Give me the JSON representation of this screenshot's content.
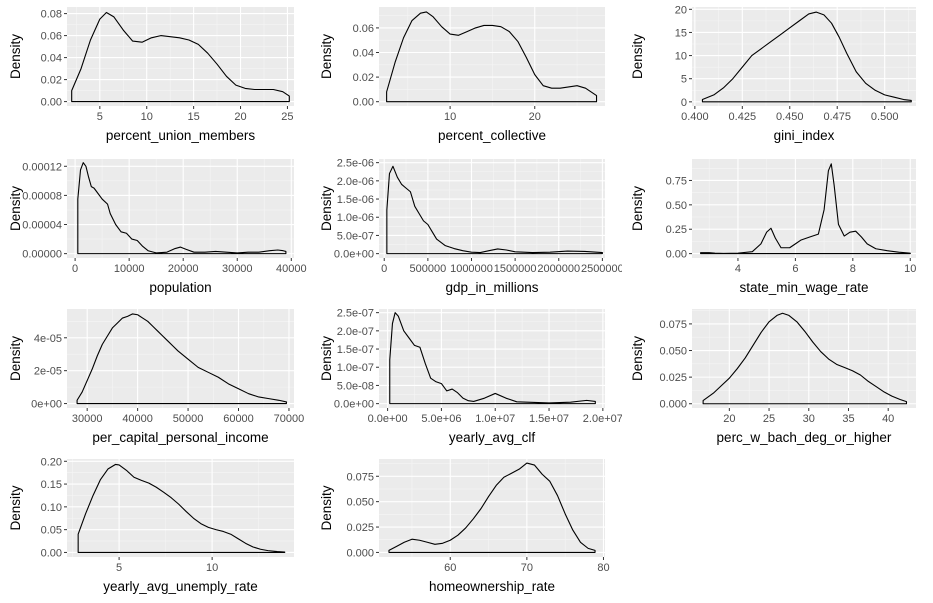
{
  "chart_data": [
    {
      "type": "area",
      "xlabel": "percent_union_members",
      "ylabel": "Density",
      "xlim": [
        1.5,
        25.7
      ],
      "ylim": [
        -0.004,
        0.086
      ],
      "xticks": [
        {
          "v": 5,
          "l": "5"
        },
        {
          "v": 10,
          "l": "10"
        },
        {
          "v": 15,
          "l": "15"
        },
        {
          "v": 20,
          "l": "20"
        },
        {
          "v": 25,
          "l": "25"
        }
      ],
      "yticks": [
        {
          "v": 0,
          "l": "0.00"
        },
        {
          "v": 0.02,
          "l": "0.02"
        },
        {
          "v": 0.04,
          "l": "0.04"
        },
        {
          "v": 0.06,
          "l": "0.06"
        },
        {
          "v": 0.08,
          "l": "0.08"
        }
      ],
      "x": [
        2.0,
        3.0,
        4.0,
        5.0,
        5.7,
        6.5,
        7.5,
        8.5,
        9.5,
        10.5,
        11.5,
        12.5,
        13.5,
        14.5,
        15.5,
        16.5,
        17.5,
        18.5,
        19.5,
        20.5,
        21.5,
        22.5,
        23.5,
        24.5,
        25.2
      ],
      "y": [
        0.01,
        0.03,
        0.056,
        0.075,
        0.081,
        0.077,
        0.065,
        0.055,
        0.054,
        0.058,
        0.06,
        0.059,
        0.058,
        0.056,
        0.052,
        0.044,
        0.034,
        0.023,
        0.015,
        0.012,
        0.011,
        0.011,
        0.011,
        0.009,
        0.005
      ]
    },
    {
      "type": "area",
      "xlabel": "percent_collective",
      "ylabel": "Density",
      "xlim": [
        1.6,
        28.3
      ],
      "ylim": [
        -0.0035,
        0.077
      ],
      "xticks": [
        {
          "v": 10,
          "l": "10"
        },
        {
          "v": 20,
          "l": "20"
        }
      ],
      "yticks": [
        {
          "v": 0,
          "l": "0.00"
        },
        {
          "v": 0.02,
          "l": "0.02"
        },
        {
          "v": 0.04,
          "l": "0.04"
        },
        {
          "v": 0.06,
          "l": "0.06"
        }
      ],
      "x": [
        2.5,
        3.5,
        4.5,
        5.5,
        6.5,
        7.2,
        8.0,
        9.0,
        10.0,
        11.0,
        12.0,
        13.0,
        14.0,
        15.0,
        16.0,
        17.0,
        18.0,
        19.0,
        20.0,
        21.0,
        22.0,
        23.0,
        24.0,
        25.0,
        26.0,
        27.3
      ],
      "y": [
        0.008,
        0.032,
        0.052,
        0.066,
        0.072,
        0.073,
        0.069,
        0.061,
        0.055,
        0.054,
        0.057,
        0.06,
        0.062,
        0.062,
        0.061,
        0.057,
        0.049,
        0.036,
        0.022,
        0.013,
        0.011,
        0.011,
        0.012,
        0.013,
        0.011,
        0.005
      ]
    },
    {
      "type": "area",
      "xlabel": "gini_index",
      "ylabel": "Density",
      "xlim": [
        0.3985,
        0.5165
      ],
      "ylim": [
        -0.9,
        20.5
      ],
      "xticks": [
        {
          "v": 0.4,
          "l": "0.400"
        },
        {
          "v": 0.425,
          "l": "0.425"
        },
        {
          "v": 0.45,
          "l": "0.450"
        },
        {
          "v": 0.475,
          "l": "0.475"
        },
        {
          "v": 0.5,
          "l": "0.500"
        }
      ],
      "yticks": [
        {
          "v": 0,
          "l": "0"
        },
        {
          "v": 5,
          "l": "5"
        },
        {
          "v": 10,
          "l": "10"
        },
        {
          "v": 15,
          "l": "15"
        },
        {
          "v": 20,
          "l": "20"
        }
      ],
      "x": [
        0.404,
        0.41,
        0.415,
        0.42,
        0.425,
        0.43,
        0.435,
        0.44,
        0.445,
        0.45,
        0.455,
        0.46,
        0.464,
        0.468,
        0.472,
        0.476,
        0.48,
        0.485,
        0.49,
        0.495,
        0.5,
        0.505,
        0.51,
        0.514
      ],
      "y": [
        0.5,
        1.5,
        3.0,
        5.0,
        7.5,
        10.0,
        11.5,
        13.0,
        14.5,
        16.0,
        17.5,
        19.0,
        19.4,
        18.8,
        17.0,
        14.0,
        10.5,
        6.5,
        4.0,
        2.5,
        1.5,
        1.0,
        0.5,
        0.3
      ]
    },
    {
      "type": "area",
      "xlabel": "population",
      "ylabel": "Density",
      "xlim": [
        -1500,
        40500
      ],
      "ylim": [
        -6e-06,
        0.00013
      ],
      "xticks": [
        {
          "v": 0,
          "l": "0"
        },
        {
          "v": 10000,
          "l": "10000"
        },
        {
          "v": 20000,
          "l": "20000"
        },
        {
          "v": 30000,
          "l": "30000"
        },
        {
          "v": 40000,
          "l": "40000"
        }
      ],
      "yticks": [
        {
          "v": 0,
          "l": "0.00000"
        },
        {
          "v": 4e-05,
          "l": "0.00004"
        },
        {
          "v": 8e-05,
          "l": "0.00008"
        },
        {
          "v": 0.00012,
          "l": "0.00012"
        }
      ],
      "x": [
        500,
        1000,
        1500,
        2000,
        2500,
        3000,
        3500,
        4000,
        5000,
        6000,
        6500,
        7500,
        8500,
        9500,
        10500,
        11500,
        12500,
        13500,
        15000,
        17000,
        18500,
        19500,
        20500,
        22000,
        24000,
        26000,
        28000,
        30000,
        32000,
        34000,
        36000,
        37500,
        38500,
        39000
      ],
      "y": [
        7.5e-05,
        0.000115,
        0.000125,
        0.00012,
        0.000105,
        9.2e-05,
        9e-05,
        8.5e-05,
        7.5e-05,
        6.8e-05,
        5.5e-05,
        4e-05,
        3e-05,
        2.8e-05,
        2e-05,
        1.8e-05,
        1e-05,
        4e-06,
        1e-06,
        2e-06,
        7e-06,
        9e-06,
        6e-06,
        2e-06,
        2e-06,
        3e-06,
        2e-06,
        1e-06,
        2e-06,
        2e-06,
        4e-06,
        5e-06,
        4e-06,
        3e-06
      ]
    },
    {
      "type": "area",
      "xlabel": "gdp_in_millions",
      "ylabel": "Density",
      "xlim": [
        -60000,
        2530000
      ],
      "ylim": [
        -1.2e-07,
        2.6e-06
      ],
      "xticks": [
        {
          "v": 0,
          "l": "0"
        },
        {
          "v": 500000,
          "l": "500000"
        },
        {
          "v": 1000000,
          "l": "1000000"
        },
        {
          "v": 1500000,
          "l": "1500000"
        },
        {
          "v": 2000000,
          "l": "2000000"
        },
        {
          "v": 2500000,
          "l": "2500000"
        }
      ],
      "yticks": [
        {
          "v": 0,
          "l": "0.0e+00"
        },
        {
          "v": 5e-07,
          "l": "5.0e-07"
        },
        {
          "v": 1e-06,
          "l": "1.0e-06"
        },
        {
          "v": 1.5e-06,
          "l": "1.5e-06"
        },
        {
          "v": 2e-06,
          "l": "2.0e-06"
        },
        {
          "v": 2.5e-06,
          "l": "2.5e-06"
        }
      ],
      "x": [
        30000,
        60000,
        100000,
        150000,
        200000,
        250000,
        300000,
        350000,
        400000,
        450000,
        500000,
        550000,
        600000,
        700000,
        800000,
        900000,
        1000000,
        1100000,
        1200000,
        1300000,
        1400000,
        1500000,
        1700000,
        1900000,
        2100000,
        2300000,
        2500000
      ],
      "y": [
        1.2e-06,
        2.2e-06,
        2.4e-06,
        2.1e-06,
        1.9e-06,
        1.8e-06,
        1.7e-06,
        1.3e-06,
        1.1e-06,
        9e-07,
        8e-07,
        6e-07,
        4e-07,
        2.2e-07,
        1.4e-07,
        8e-08,
        4e-08,
        3e-08,
        8e-08,
        1.3e-07,
        1e-07,
        5e-08,
        3e-08,
        4e-08,
        7e-08,
        6e-08,
        3e-08
      ]
    },
    {
      "type": "area",
      "xlabel": "state_min_wage_rate",
      "ylabel": "Density",
      "xlim": [
        2.4,
        10.2
      ],
      "ylim": [
        -0.045,
        0.97
      ],
      "xticks": [
        {
          "v": 4,
          "l": "4"
        },
        {
          "v": 6,
          "l": "6"
        },
        {
          "v": 8,
          "l": "8"
        },
        {
          "v": 10,
          "l": "10"
        }
      ],
      "yticks": [
        {
          "v": 0,
          "l": "0.00"
        },
        {
          "v": 0.25,
          "l": "0.25"
        },
        {
          "v": 0.5,
          "l": "0.50"
        },
        {
          "v": 0.75,
          "l": "0.75"
        }
      ],
      "x": [
        2.7,
        3.0,
        3.2,
        3.5,
        4.0,
        4.5,
        4.8,
        5.0,
        5.15,
        5.3,
        5.5,
        5.8,
        6.0,
        6.2,
        6.5,
        6.8,
        7.0,
        7.15,
        7.25,
        7.35,
        7.5,
        7.7,
        7.9,
        8.1,
        8.3,
        8.5,
        8.8,
        9.2,
        9.6,
        10.0
      ],
      "y": [
        0.01,
        0.01,
        0.005,
        0.002,
        0.005,
        0.02,
        0.1,
        0.22,
        0.26,
        0.16,
        0.06,
        0.06,
        0.1,
        0.14,
        0.17,
        0.2,
        0.45,
        0.85,
        0.92,
        0.7,
        0.3,
        0.18,
        0.22,
        0.23,
        0.17,
        0.1,
        0.05,
        0.03,
        0.015,
        0.005
      ]
    },
    {
      "type": "area",
      "xlabel": "per_capital_personal_income",
      "ylabel": "Density",
      "xlim": [
        26000,
        71000
      ],
      "ylim": [
        -2.7e-06,
        5.75e-05
      ],
      "xticks": [
        {
          "v": 30000,
          "l": "30000"
        },
        {
          "v": 40000,
          "l": "40000"
        },
        {
          "v": 50000,
          "l": "50000"
        },
        {
          "v": 60000,
          "l": "60000"
        },
        {
          "v": 70000,
          "l": "70000"
        }
      ],
      "yticks": [
        {
          "v": 0,
          "l": "0e+00"
        },
        {
          "v": 2e-05,
          "l": "2e-05"
        },
        {
          "v": 4e-05,
          "l": "4e-05"
        }
      ],
      "x": [
        28000,
        29000,
        30000,
        31000,
        32000,
        33000,
        34000,
        35000,
        36000,
        37000,
        38000,
        39000,
        40000,
        41000,
        42000,
        43000,
        44000,
        45000,
        46000,
        47000,
        48000,
        50000,
        52000,
        54000,
        56000,
        58000,
        60000,
        62000,
        64000,
        66000,
        68000,
        69500
      ],
      "y": [
        2e-06,
        7e-06,
        1.4e-05,
        2.1e-05,
        2.9e-05,
        3.6e-05,
        4.1e-05,
        4.6e-05,
        4.9e-05,
        5.2e-05,
        5.3e-05,
        5.45e-05,
        5.4e-05,
        5.2e-05,
        5e-05,
        4.7e-05,
        4.4e-05,
        4.1e-05,
        3.8e-05,
        3.5e-05,
        3.2e-05,
        2.7e-05,
        2.2e-05,
        1.9e-05,
        1.6e-05,
        1.2e-05,
        9e-06,
        6e-06,
        4e-06,
        3e-06,
        2e-06,
        1e-06
      ]
    },
    {
      "type": "area",
      "xlabel": "yearly_avg_clf",
      "ylabel": "Density",
      "xlim": [
        -800000,
        20200000
      ],
      "ylim": [
        -1.2e-08,
        2.6e-07
      ],
      "xticks": [
        {
          "v": 0,
          "l": "0.0e+00"
        },
        {
          "v": 5000000,
          "l": "5.0e+06"
        },
        {
          "v": 10000000,
          "l": "1.0e+07"
        },
        {
          "v": 15000000,
          "l": "1.5e+07"
        },
        {
          "v": 20000000,
          "l": "2.0e+07"
        }
      ],
      "yticks": [
        {
          "v": 0,
          "l": "0.0e+00"
        },
        {
          "v": 5e-08,
          "l": "5.0e-08"
        },
        {
          "v": 1e-07,
          "l": "1.0e-07"
        },
        {
          "v": 1.5e-07,
          "l": "1.5e-07"
        },
        {
          "v": 2e-07,
          "l": "2.0e-07"
        },
        {
          "v": 2.5e-07,
          "l": "2.5e-07"
        }
      ],
      "x": [
        200000,
        450000,
        700000,
        1000000,
        1500000,
        2000000,
        2500000,
        3000000,
        3500000,
        4000000,
        4500000,
        5000000,
        5500000,
        6000000,
        6500000,
        7000000,
        7500000,
        8000000,
        9000000,
        10000000,
        11000000,
        12000000,
        13000000,
        15000000,
        17000000,
        18500000,
        19300000
      ],
      "y": [
        1.2e-07,
        2.2e-07,
        2.5e-07,
        2.4e-07,
        2e-07,
        1.8e-07,
        1.6e-07,
        1.55e-07,
        1.1e-07,
        7e-08,
        6e-08,
        5.5e-08,
        3.5e-08,
        4e-08,
        3e-08,
        1.5e-08,
        8e-09,
        6e-09,
        1.5e-08,
        2.8e-08,
        1.5e-08,
        5e-09,
        4e-09,
        2e-09,
        4e-09,
        9e-09,
        6e-09
      ]
    },
    {
      "type": "area",
      "xlabel": "perc_w_bach_deg_or_higher",
      "ylabel": "Density",
      "xlim": [
        15.3,
        43.5
      ],
      "ylim": [
        -0.004,
        0.089
      ],
      "xticks": [
        {
          "v": 20,
          "l": "20"
        },
        {
          "v": 25,
          "l": "25"
        },
        {
          "v": 30,
          "l": "30"
        },
        {
          "v": 35,
          "l": "35"
        },
        {
          "v": 40,
          "l": "40"
        }
      ],
      "yticks": [
        {
          "v": 0,
          "l": "0.000"
        },
        {
          "v": 0.025,
          "l": "0.025"
        },
        {
          "v": 0.05,
          "l": "0.050"
        },
        {
          "v": 0.075,
          "l": "0.075"
        }
      ],
      "x": [
        16.7,
        18.0,
        19.0,
        20.0,
        21.0,
        22.0,
        23.0,
        24.0,
        25.0,
        26.0,
        26.7,
        27.5,
        28.5,
        29.5,
        30.5,
        31.5,
        32.5,
        33.5,
        34.5,
        35.5,
        36.5,
        37.5,
        38.5,
        39.5,
        40.5,
        41.5,
        42.3
      ],
      "y": [
        0.003,
        0.01,
        0.017,
        0.024,
        0.033,
        0.043,
        0.055,
        0.067,
        0.077,
        0.083,
        0.085,
        0.083,
        0.077,
        0.068,
        0.058,
        0.049,
        0.042,
        0.037,
        0.034,
        0.031,
        0.027,
        0.021,
        0.016,
        0.011,
        0.007,
        0.004,
        0.002
      ]
    },
    {
      "type": "area",
      "xlabel": "yearly_avg_unemply_rate",
      "ylabel": "Density",
      "xlim": [
        2.2,
        14.4
      ],
      "ylim": [
        -0.01,
        0.205
      ],
      "xticks": [
        {
          "v": 5,
          "l": "5"
        },
        {
          "v": 10,
          "l": "10"
        }
      ],
      "yticks": [
        {
          "v": 0,
          "l": "0.00"
        },
        {
          "v": 0.05,
          "l": "0.05"
        },
        {
          "v": 0.1,
          "l": "0.10"
        },
        {
          "v": 0.15,
          "l": "0.15"
        },
        {
          "v": 0.2,
          "l": "0.20"
        }
      ],
      "x": [
        2.8,
        3.2,
        3.6,
        4.0,
        4.4,
        4.8,
        5.0,
        5.4,
        5.8,
        6.2,
        6.6,
        7.0,
        7.4,
        7.8,
        8.2,
        8.6,
        9.0,
        9.4,
        9.8,
        10.2,
        10.6,
        11.0,
        11.4,
        11.8,
        12.2,
        12.6,
        13.0,
        13.5,
        13.9
      ],
      "y": [
        0.04,
        0.085,
        0.125,
        0.16,
        0.183,
        0.193,
        0.192,
        0.18,
        0.165,
        0.158,
        0.152,
        0.143,
        0.132,
        0.12,
        0.106,
        0.09,
        0.075,
        0.063,
        0.055,
        0.05,
        0.046,
        0.04,
        0.03,
        0.02,
        0.012,
        0.007,
        0.004,
        0.002,
        0.001
      ]
    },
    {
      "type": "area",
      "xlabel": "homeownership_rate",
      "ylabel": "Density",
      "xlim": [
        50.7,
        80.2
      ],
      "ylim": [
        -0.0045,
        0.092
      ],
      "xticks": [
        {
          "v": 60,
          "l": "60"
        },
        {
          "v": 70,
          "l": "70"
        },
        {
          "v": 80,
          "l": "80"
        }
      ],
      "yticks": [
        {
          "v": 0,
          "l": "0.000"
        },
        {
          "v": 0.025,
          "l": "0.025"
        },
        {
          "v": 0.05,
          "l": "0.050"
        },
        {
          "v": 0.075,
          "l": "0.075"
        }
      ],
      "x": [
        52.0,
        53.0,
        54.0,
        55.0,
        56.0,
        57.0,
        58.0,
        59.0,
        60.0,
        61.0,
        62.0,
        63.0,
        64.0,
        65.0,
        66.0,
        67.0,
        68.0,
        69.0,
        70.0,
        71.0,
        72.0,
        73.0,
        74.0,
        75.0,
        76.0,
        77.0,
        78.0,
        78.9
      ],
      "y": [
        0.002,
        0.006,
        0.01,
        0.013,
        0.012,
        0.01,
        0.008,
        0.009,
        0.012,
        0.017,
        0.024,
        0.033,
        0.043,
        0.055,
        0.066,
        0.074,
        0.078,
        0.082,
        0.088,
        0.086,
        0.077,
        0.07,
        0.056,
        0.038,
        0.022,
        0.01,
        0.004,
        0.002
      ]
    }
  ]
}
